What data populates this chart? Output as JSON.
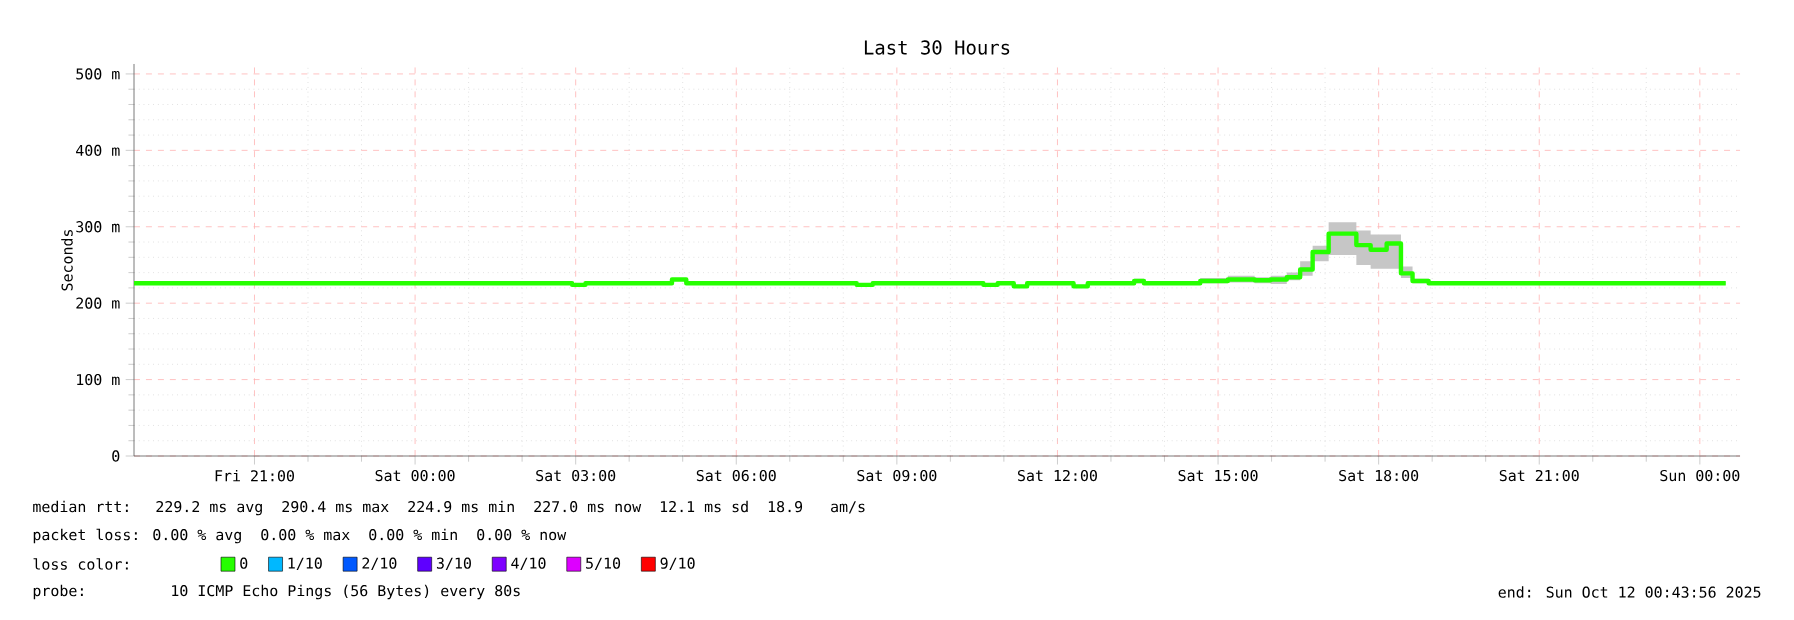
{
  "chart_data": {
    "type": "step",
    "title": "Last 30 Hours",
    "ylabel": "Seconds",
    "legend_title": "loss color:",
    "xlim": [
      "2025-10-10T18:45",
      "2025-10-12T00:45"
    ],
    "ylim": [
      0,
      513
    ],
    "xticks": [
      {
        "value": "2025-10-10T21:00",
        "label": "Fri 21:00"
      },
      {
        "value": "2025-10-11T00:00",
        "label": "Sat 00:00"
      },
      {
        "value": "2025-10-11T03:00",
        "label": "Sat 03:00"
      },
      {
        "value": "2025-10-11T06:00",
        "label": "Sat 06:00"
      },
      {
        "value": "2025-10-11T09:00",
        "label": "Sat 09:00"
      },
      {
        "value": "2025-10-11T12:00",
        "label": "Sat 12:00"
      },
      {
        "value": "2025-10-11T15:00",
        "label": "Sat 15:00"
      },
      {
        "value": "2025-10-11T18:00",
        "label": "Sat 18:00"
      },
      {
        "value": "2025-10-11T21:00",
        "label": "Sat 21:00"
      },
      {
        "value": "2025-10-12T00:00",
        "label": "Sun 00:00"
      }
    ],
    "yticks": [
      0,
      {
        "value": 100,
        "label": "100 m"
      },
      {
        "value": 200,
        "label": "200 m"
      },
      {
        "value": 300,
        "label": "300 m"
      },
      {
        "value": 400,
        "label": "400 m"
      },
      {
        "value": 500,
        "label": "500 m"
      }
    ],
    "grid": true,
    "legend": "bottom",
    "marker": "none",
    "line_style": "solid",
    "series": [
      {
        "name": "0",
        "color": "#26ff00",
        "x": [
          "2025-10-10T18:45",
          "2025-10-11T02:56",
          "2025-10-11T03:11",
          "2025-10-11T04:48",
          "2025-10-11T05:04",
          "2025-10-11T08:15",
          "2025-10-11T08:33",
          "2025-10-11T10:37",
          "2025-10-11T10:53",
          "2025-10-11T11:11",
          "2025-10-11T11:26",
          "2025-10-11T12:18",
          "2025-10-11T12:34",
          "2025-10-11T13:26",
          "2025-10-11T13:37",
          "2025-10-11T14:40",
          "2025-10-11T15:11",
          "2025-10-11T15:41",
          "2025-10-11T15:59",
          "2025-10-11T16:17",
          "2025-10-11T16:32",
          "2025-10-11T16:46",
          "2025-10-11T17:04",
          "2025-10-11T17:35",
          "2025-10-11T17:51",
          "2025-10-11T18:09",
          "2025-10-11T18:25",
          "2025-10-11T18:38",
          "2025-10-11T18:56",
          "2025-10-12T00:29"
        ],
        "values": [
          226,
          224,
          226,
          231,
          226,
          224,
          226,
          224,
          226,
          222,
          226,
          222,
          226,
          229,
          226,
          229,
          231,
          230,
          231,
          234,
          244,
          267,
          291,
          276,
          270,
          278,
          239,
          229,
          226,
          226
        ],
        "lower": [
          224,
          222,
          224,
          229,
          224,
          222,
          224,
          222,
          224,
          220,
          224,
          220,
          224,
          226,
          224,
          226,
          227,
          226,
          225,
          230,
          236,
          255,
          263,
          250,
          245,
          245,
          233,
          226,
          224,
          224
        ],
        "upper": [
          228,
          226,
          228,
          233,
          228,
          226,
          228,
          226,
          228,
          224,
          228,
          224,
          228,
          232,
          228,
          233,
          236,
          234,
          236,
          240,
          255,
          275,
          306,
          295,
          290,
          290,
          248,
          232,
          228,
          228
        ]
      },
      {
        "name": "1/10",
        "color": "#00b8ff"
      },
      {
        "name": "2/10",
        "color": "#0059ff"
      },
      {
        "name": "3/10",
        "color": "#5e00ff"
      },
      {
        "name": "4/10",
        "color": "#7e00ff"
      },
      {
        "name": "5/10",
        "color": "#dd00ff"
      },
      {
        "name": "9/10",
        "color": "#ff0000"
      }
    ],
    "annotations": [
      "median rtt:  229.2 ms avg  290.4 ms max  224.9 ms min  227.0 ms now  12.1 ms sd  18.9   am/s",
      "packet loss: 0.00 % avg  0.00 % max  0.00 % min  0.00 % now",
      "probe:       10 ICMP Echo Pings (56 Bytes) every 80s",
      "end: Sun Oct 12 00:43:56 2025"
    ]
  }
}
